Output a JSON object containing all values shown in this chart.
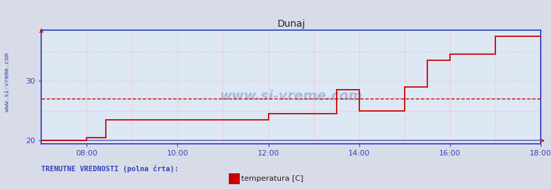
{
  "title": "Dunaj",
  "title_fontsize": 10,
  "bg_color": "#d8dce8",
  "plot_bg_color": "#dde8f4",
  "line_color": "#cc0000",
  "baseline_color": "#6666cc",
  "grid_color": "#ffbbcc",
  "grid_lw": 0.6,
  "spine_color": "#3344bb",
  "text_color": "#3344bb",
  "watermark_color": "#2244aa",
  "watermark_alpha": 0.28,
  "dashed_line_value": 27.0,
  "dashed_line_color": "#cc0000",
  "ylim": [
    19.5,
    38.5
  ],
  "xlim_min": 0,
  "xlim_max": 660,
  "xtick_positions": [
    60,
    180,
    300,
    420,
    540,
    660
  ],
  "xticklabels": [
    "08:00",
    "10:00",
    "12:00",
    "14:00",
    "16:00",
    "18:00"
  ],
  "ytick_positions": [
    20,
    30
  ],
  "yticklabels": [
    "20",
    "30"
  ],
  "legend_label": "temperatura [C]",
  "legend_color": "#cc0000",
  "footer_text": "TRENUTNE VREDNOSTI (polna črta):",
  "ylabel_side": "www.si-vreme.com",
  "step_times": [
    0,
    60,
    60,
    85,
    85,
    300,
    300,
    390,
    390,
    420,
    420,
    480,
    480,
    510,
    510,
    540,
    540,
    600,
    600,
    630,
    630,
    648,
    648,
    660
  ],
  "step_temps": [
    20.0,
    20.0,
    20.5,
    20.5,
    23.5,
    23.5,
    24.5,
    24.5,
    28.5,
    28.5,
    25.0,
    25.0,
    29.0,
    29.0,
    33.5,
    33.5,
    34.5,
    34.5,
    37.5,
    37.5,
    37.5,
    37.5,
    37.5,
    37.5
  ]
}
